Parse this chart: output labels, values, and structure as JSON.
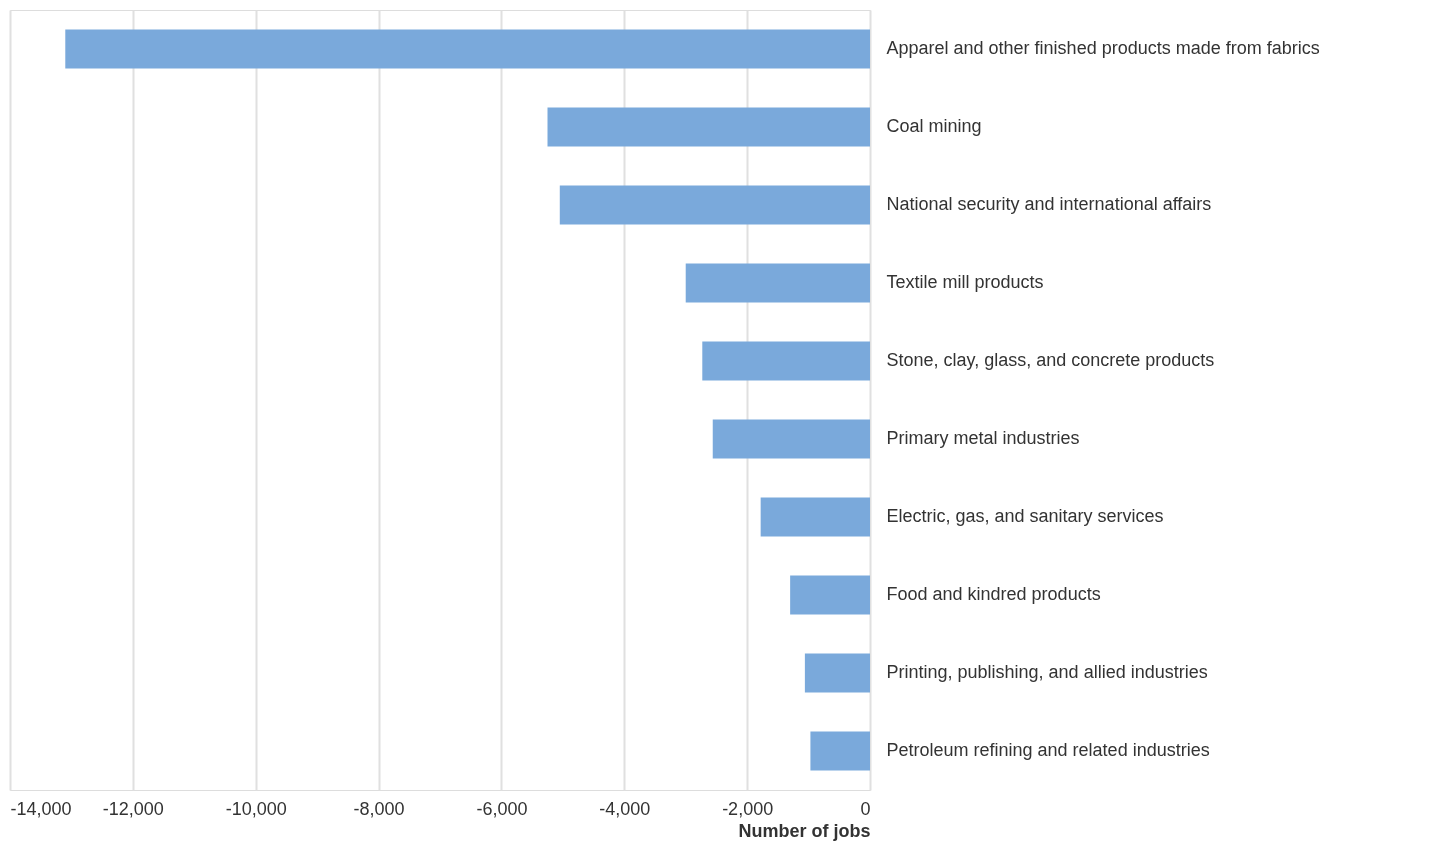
{
  "chart_data": {
    "type": "bar",
    "orientation": "horizontal",
    "xlabel": "Number of jobs",
    "categories": [
      "Apparel and other finished products made from fabrics",
      "Coal mining",
      "National security and international affairs",
      "Textile mill products",
      "Stone, clay, glass, and concrete products",
      "Primary metal industries",
      "Electric, gas, and sanitary services",
      "Food and kindred products",
      "Printing, publishing, and allied industries",
      "Petroleum refining and related industries"
    ],
    "values": [
      -13100,
      -5250,
      -5050,
      -3000,
      -2730,
      -2560,
      -1780,
      -1300,
      -1060,
      -970
    ],
    "color": "#7aa9db",
    "xlim": [
      -14000,
      0
    ],
    "xticks": [
      {
        "value": -14000,
        "label": "-14,000"
      },
      {
        "value": -12000,
        "label": "-12,000"
      },
      {
        "value": -10000,
        "label": "-10,000"
      },
      {
        "value": -8000,
        "label": "-8,000"
      },
      {
        "value": -6000,
        "label": "-6,000"
      },
      {
        "value": -4000,
        "label": "-4,000"
      },
      {
        "value": -2000,
        "label": "-2,000"
      },
      0
    ],
    "grid": "x"
  }
}
